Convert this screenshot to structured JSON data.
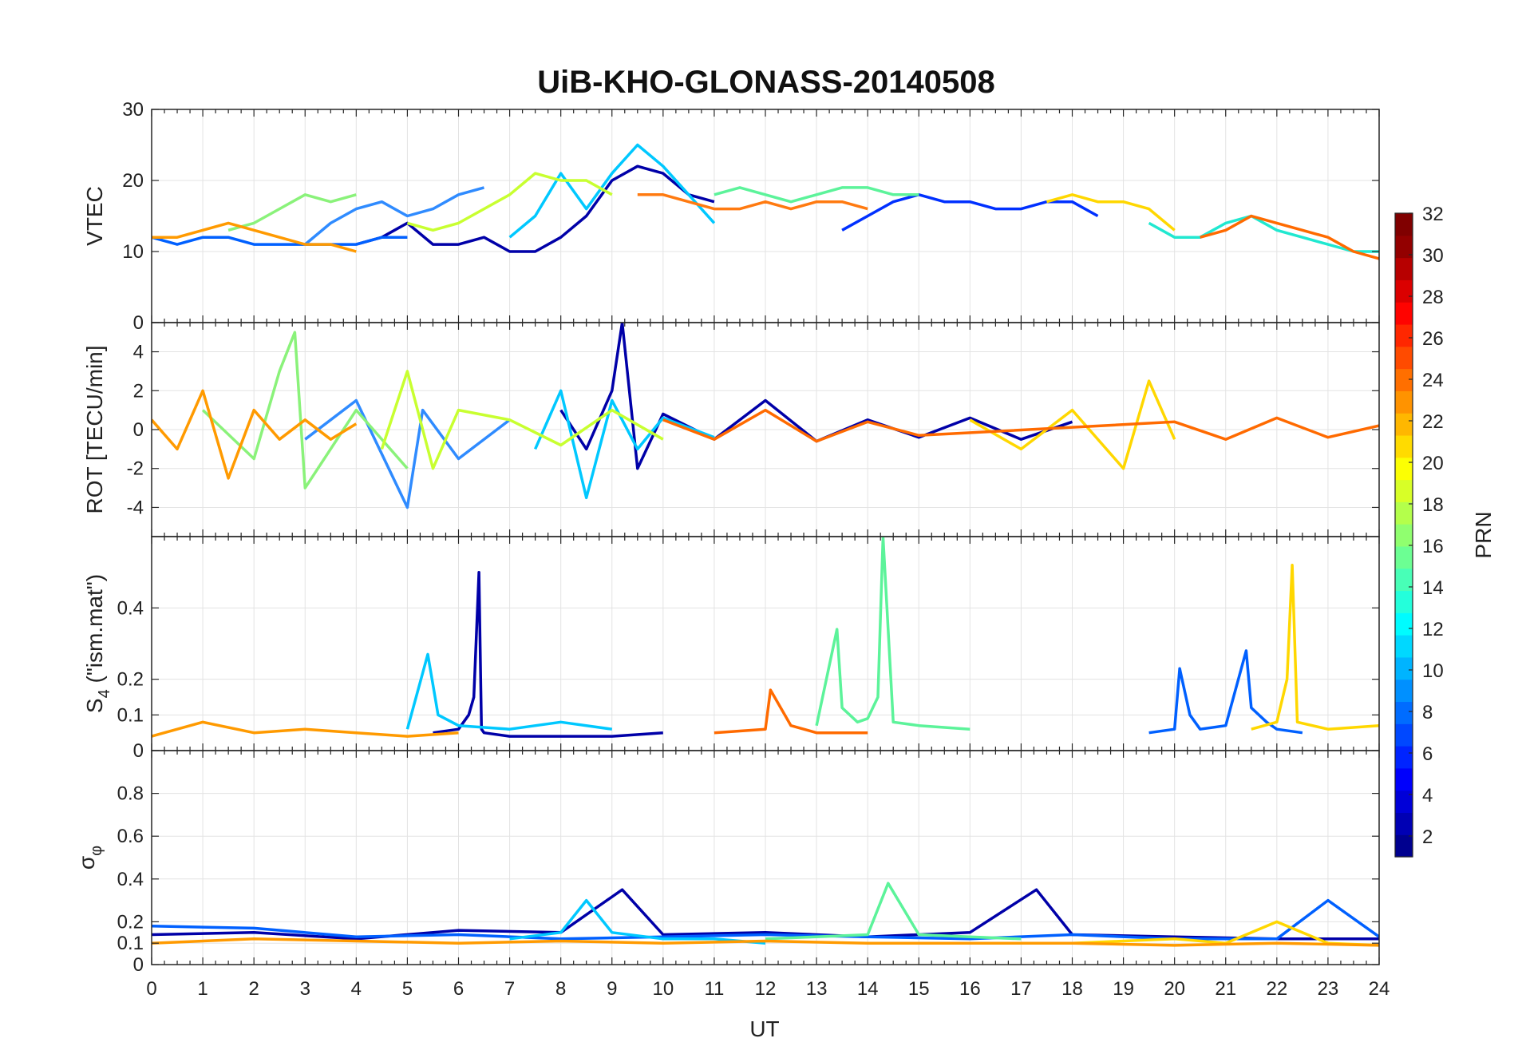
{
  "figure": {
    "title": "UiB-KHO-GLONASS-20140508"
  },
  "chart_data": [
    {
      "type": "line",
      "panel": "vtec",
      "ylabel": "VTEC",
      "xlim": [
        0,
        24
      ],
      "ylim": [
        0,
        30
      ],
      "yticks": [
        0,
        10,
        20,
        30
      ],
      "series": [
        {
          "prn": 2,
          "color": "#0000a8",
          "x": [
            4.0,
            4.5,
            5.0,
            5.5,
            6.0,
            6.5,
            7.0,
            7.5,
            8.0,
            8.5,
            9.0,
            9.5,
            10.0,
            10.5,
            11.0
          ],
          "y": [
            11,
            12,
            14,
            11,
            11,
            12,
            10,
            10,
            12,
            15,
            20,
            22,
            21,
            18,
            17
          ]
        },
        {
          "prn": 5,
          "color": "#0030ff",
          "x": [
            13.5,
            14.0,
            14.5,
            15.0,
            15.5,
            16.0,
            16.5,
            17.0,
            17.5,
            18.0,
            18.5
          ],
          "y": [
            13,
            15,
            17,
            18,
            17,
            17,
            16,
            16,
            17,
            17,
            15
          ]
        },
        {
          "prn": 7,
          "color": "#0060ff",
          "x": [
            0,
            0.5,
            1.0,
            1.5,
            2.0,
            2.5,
            3.0,
            3.5,
            4.0,
            4.5,
            5.0
          ],
          "y": [
            12,
            11,
            12,
            12,
            11,
            11,
            11,
            11,
            11,
            12,
            12
          ]
        },
        {
          "prn": 9,
          "color": "#2f8bff",
          "x": [
            3.0,
            3.5,
            4.0,
            4.5,
            5.0,
            5.5,
            6.0,
            6.5
          ],
          "y": [
            11,
            14,
            16,
            17,
            15,
            16,
            18,
            19
          ]
        },
        {
          "prn": 11,
          "color": "#00c8ff",
          "x": [
            7.0,
            7.5,
            8.0,
            8.5,
            9.0,
            9.5,
            10.0,
            10.5,
            11.0
          ],
          "y": [
            12,
            15,
            21,
            16,
            21,
            25,
            22,
            18,
            14
          ]
        },
        {
          "prn": 13,
          "color": "#20e8d0",
          "x": [
            19.5,
            20.0,
            20.5,
            21.0,
            21.5,
            22.0,
            22.5,
            23.0,
            23.5,
            24.0
          ],
          "y": [
            14,
            12,
            12,
            14,
            15,
            13,
            12,
            11,
            10,
            10
          ]
        },
        {
          "prn": 15,
          "color": "#5cf39a",
          "x": [
            11.0,
            11.5,
            12.0,
            12.5,
            13.0,
            13.5,
            14.0,
            14.5,
            15.0
          ],
          "y": [
            18,
            19,
            18,
            17,
            18,
            19,
            19,
            18,
            18
          ]
        },
        {
          "prn": 17,
          "color": "#8af27a",
          "x": [
            1.5,
            2.0,
            2.5,
            3.0,
            3.5,
            4.0
          ],
          "y": [
            13,
            14,
            16,
            18,
            17,
            18
          ]
        },
        {
          "prn": 19,
          "color": "#c8ff30",
          "x": [
            5.0,
            5.5,
            6.0,
            6.5,
            7.0,
            7.5,
            8.0,
            8.5,
            9.0
          ],
          "y": [
            14,
            13,
            14,
            16,
            18,
            21,
            20,
            20,
            18
          ]
        },
        {
          "prn": 21,
          "color": "#ffd700",
          "x": [
            17.5,
            18.0,
            18.5,
            19.0,
            19.5,
            20.0
          ],
          "y": [
            17,
            18,
            17,
            17,
            16,
            13
          ]
        },
        {
          "prn": 23,
          "color": "#ff9a00",
          "x": [
            0,
            0.5,
            1.0,
            1.5,
            2.0,
            2.5,
            3.0,
            3.5,
            4.0
          ],
          "y": [
            12,
            12,
            13,
            14,
            13,
            12,
            11,
            11,
            10
          ]
        },
        {
          "prn": 24,
          "color": "#ff7a10",
          "x": [
            9.5,
            10.0,
            10.5,
            11.0,
            11.5,
            12.0,
            12.5,
            13.0,
            13.5,
            14.0
          ],
          "y": [
            18,
            18,
            17,
            16,
            16,
            17,
            16,
            17,
            17,
            16
          ]
        },
        {
          "prn": 25,
          "color": "#ff6a00",
          "x": [
            20.5,
            21.0,
            21.5,
            22.0,
            22.5,
            23.0,
            23.5,
            24.0
          ],
          "y": [
            12,
            13,
            15,
            14,
            13,
            12,
            10,
            9
          ]
        }
      ]
    },
    {
      "type": "line",
      "panel": "rot",
      "ylabel": "ROT [TECU/min]",
      "xlim": [
        0,
        24
      ],
      "ylim": [
        -5.5,
        5.5
      ],
      "yticks": [
        -4,
        -2,
        0,
        2,
        4
      ],
      "series": [
        {
          "prn": 2,
          "color": "#0000a8",
          "x": [
            8.0,
            8.5,
            9.0,
            9.2,
            9.5,
            10.0,
            11.0,
            12.0,
            13.0,
            14.0,
            15.0,
            16.0,
            17.0,
            18.0
          ],
          "y": [
            1,
            -1,
            2,
            5.5,
            -2,
            0.8,
            -0.5,
            1.5,
            -0.6,
            0.5,
            -0.4,
            0.6,
            -0.5,
            0.4
          ]
        },
        {
          "prn": 9,
          "color": "#2f8bff",
          "x": [
            3.0,
            4.0,
            5.0,
            5.3,
            6.0,
            7.0
          ],
          "y": [
            -0.5,
            1.5,
            -4,
            1,
            -1.5,
            0.5
          ]
        },
        {
          "prn": 11,
          "color": "#00c8ff",
          "x": [
            7.5,
            8.0,
            8.5,
            9.0,
            9.5,
            10.0,
            11.0
          ],
          "y": [
            -1,
            2,
            -3.5,
            1.5,
            -1,
            0.6,
            -0.4
          ]
        },
        {
          "prn": 17,
          "color": "#8af27a",
          "x": [
            1.0,
            2.0,
            2.5,
            2.8,
            3.0,
            4.0,
            5.0
          ],
          "y": [
            1,
            -1.5,
            3,
            5,
            -3,
            1,
            -2
          ]
        },
        {
          "prn": 19,
          "color": "#c8ff30",
          "x": [
            4.5,
            5.0,
            5.5,
            6.0,
            7.0,
            8.0,
            9.0,
            10.0
          ],
          "y": [
            -1,
            3,
            -2,
            1,
            0.5,
            -0.8,
            1,
            -0.5
          ]
        },
        {
          "prn": 21,
          "color": "#ffd700",
          "x": [
            16.0,
            17.0,
            18.0,
            19.0,
            19.5,
            20.0
          ],
          "y": [
            0.5,
            -1,
            1,
            -2,
            2.5,
            -0.5
          ]
        },
        {
          "prn": 23,
          "color": "#ff9a00",
          "x": [
            0,
            0.5,
            1.0,
            1.5,
            2.0,
            2.5,
            3.0,
            3.5,
            4.0
          ],
          "y": [
            0.5,
            -1,
            2,
            -2.5,
            1,
            -0.5,
            0.5,
            -0.5,
            0.3
          ]
        },
        {
          "prn": 25,
          "color": "#ff6a00",
          "x": [
            10.0,
            11.0,
            12.0,
            13.0,
            14.0,
            15.0,
            20.0,
            21.0,
            22.0,
            23.0,
            24.0
          ],
          "y": [
            0.5,
            -0.5,
            1,
            -0.6,
            0.4,
            -0.3,
            0.4,
            -0.5,
            0.6,
            -0.4,
            0.2
          ]
        }
      ]
    },
    {
      "type": "line",
      "panel": "s4",
      "ylabel": "S4 (\"ism.mat\")",
      "ylabel_main": "S",
      "ylabel_sub": "4",
      "ylabel_rest": " (\"ism.mat\")",
      "xlim": [
        0,
        24
      ],
      "ylim": [
        0,
        0.6
      ],
      "yticks": [
        0,
        0.1,
        0.2,
        0.4
      ],
      "series": [
        {
          "prn": 2,
          "color": "#0000a8",
          "x": [
            5.5,
            6.0,
            6.2,
            6.3,
            6.4,
            6.45,
            6.5,
            7.0,
            8.0,
            9.0,
            10.0
          ],
          "y": [
            0.05,
            0.06,
            0.1,
            0.15,
            0.5,
            0.06,
            0.05,
            0.04,
            0.04,
            0.04,
            0.05
          ]
        },
        {
          "prn": 7,
          "color": "#0060ff",
          "x": [
            19.5,
            20.0,
            20.1,
            20.3,
            20.5,
            21.0,
            21.4,
            21.5,
            21.8,
            22.0,
            22.5
          ],
          "y": [
            0.05,
            0.06,
            0.23,
            0.1,
            0.06,
            0.07,
            0.28,
            0.12,
            0.08,
            0.06,
            0.05
          ]
        },
        {
          "prn": 11,
          "color": "#00c8ff",
          "x": [
            5.0,
            5.4,
            5.6,
            6.0,
            7.0,
            8.0,
            9.0
          ],
          "y": [
            0.06,
            0.27,
            0.1,
            0.07,
            0.06,
            0.08,
            0.06
          ]
        },
        {
          "prn": 15,
          "color": "#5cf39a",
          "x": [
            13.0,
            13.4,
            13.5,
            13.8,
            14.0,
            14.2,
            14.3,
            14.5,
            15.0,
            16.0
          ],
          "y": [
            0.07,
            0.34,
            0.12,
            0.08,
            0.09,
            0.15,
            0.6,
            0.08,
            0.07,
            0.06
          ]
        },
        {
          "prn": 21,
          "color": "#ffd700",
          "x": [
            21.5,
            22.0,
            22.2,
            22.3,
            22.4,
            23.0,
            24.0
          ],
          "y": [
            0.06,
            0.08,
            0.2,
            0.52,
            0.08,
            0.06,
            0.07
          ]
        },
        {
          "prn": 23,
          "color": "#ff9a00",
          "x": [
            0,
            1.0,
            2.0,
            3.0,
            4.0,
            5.0,
            6.0
          ],
          "y": [
            0.04,
            0.08,
            0.05,
            0.06,
            0.05,
            0.04,
            0.05
          ]
        },
        {
          "prn": 25,
          "color": "#ff6a00",
          "x": [
            11.0,
            12.0,
            12.1,
            12.5,
            13.0,
            14.0
          ],
          "y": [
            0.05,
            0.06,
            0.17,
            0.07,
            0.05,
            0.05
          ]
        }
      ]
    },
    {
      "type": "line",
      "panel": "sigma",
      "ylabel": "σ φ",
      "ylabel_main": "σ",
      "ylabel_sub": "φ",
      "xlabel": "UT",
      "xlim": [
        0,
        24
      ],
      "ylim": [
        0,
        1
      ],
      "yticks": [
        0,
        0.1,
        0.2,
        0.4,
        0.6,
        0.8
      ],
      "xticks": [
        "0",
        "1",
        "2",
        "3",
        "4",
        "5",
        "6",
        "7",
        "8",
        "9",
        "10",
        "11",
        "12",
        "13",
        "14",
        "15",
        "16",
        "17",
        "18",
        "19",
        "20",
        "21",
        "22",
        "23",
        "24"
      ],
      "series": [
        {
          "prn": 2,
          "color": "#0000a8",
          "x": [
            0,
            2.0,
            4.0,
            6.0,
            8.0,
            9.2,
            10.0,
            12.0,
            14.0,
            16.0,
            17.3,
            18.0,
            20.0,
            22.0,
            24.0
          ],
          "y": [
            0.14,
            0.15,
            0.12,
            0.16,
            0.15,
            0.35,
            0.14,
            0.15,
            0.13,
            0.15,
            0.35,
            0.14,
            0.13,
            0.12,
            0.12
          ]
        },
        {
          "prn": 7,
          "color": "#0060ff",
          "x": [
            0,
            2.0,
            4.0,
            6.0,
            8.0,
            10.0,
            12.0,
            14.0,
            16.0,
            18.0,
            20.0,
            22.0,
            23.0,
            24.0
          ],
          "y": [
            0.18,
            0.17,
            0.13,
            0.14,
            0.12,
            0.13,
            0.14,
            0.13,
            0.12,
            0.14,
            0.12,
            0.12,
            0.3,
            0.13
          ]
        },
        {
          "prn": 11,
          "color": "#00c8ff",
          "x": [
            7.0,
            8.0,
            8.5,
            9.0,
            10.0,
            11.0,
            12.0
          ],
          "y": [
            0.12,
            0.15,
            0.3,
            0.15,
            0.12,
            0.12,
            0.1
          ]
        },
        {
          "prn": 15,
          "color": "#5cf39a",
          "x": [
            12.0,
            13.0,
            14.0,
            14.4,
            15.0,
            16.0,
            17.0
          ],
          "y": [
            0.12,
            0.13,
            0.14,
            0.38,
            0.14,
            0.13,
            0.12
          ]
        },
        {
          "prn": 21,
          "color": "#ffd700",
          "x": [
            18.0,
            19.0,
            20.0,
            21.0,
            22.0,
            23.0,
            24.0
          ],
          "y": [
            0.1,
            0.11,
            0.12,
            0.1,
            0.2,
            0.1,
            0.09
          ]
        },
        {
          "prn": 23,
          "color": "#ff9a00",
          "x": [
            0,
            2.0,
            4.0,
            6.0,
            8.0,
            10.0,
            12.0,
            14.0,
            16.0,
            18.0,
            20.0,
            22.0,
            24.0
          ],
          "y": [
            0.1,
            0.12,
            0.11,
            0.1,
            0.11,
            0.1,
            0.11,
            0.1,
            0.1,
            0.1,
            0.09,
            0.1,
            0.09
          ]
        }
      ]
    }
  ],
  "colorbar": {
    "label": "PRN",
    "ticks": [
      "2",
      "4",
      "6",
      "8",
      "10",
      "12",
      "14",
      "16",
      "18",
      "20",
      "22",
      "24",
      "26",
      "28",
      "30",
      "32"
    ],
    "range": [
      1,
      32
    ],
    "colors": [
      "#00008f",
      "#0000b4",
      "#0000d8",
      "#0000fc",
      "#0024ff",
      "#0048ff",
      "#006cff",
      "#0090ff",
      "#00b4ff",
      "#00d8ff",
      "#00fcff",
      "#24ffdb",
      "#48ffb7",
      "#6cff93",
      "#90ff6f",
      "#b4ff4b",
      "#d8ff27",
      "#fcff03",
      "#ffdb00",
      "#ffb700",
      "#ff9300",
      "#ff6f00",
      "#ff4b00",
      "#ff2700",
      "#ff0300",
      "#db0000",
      "#b70000",
      "#930000",
      "#800000"
    ]
  }
}
